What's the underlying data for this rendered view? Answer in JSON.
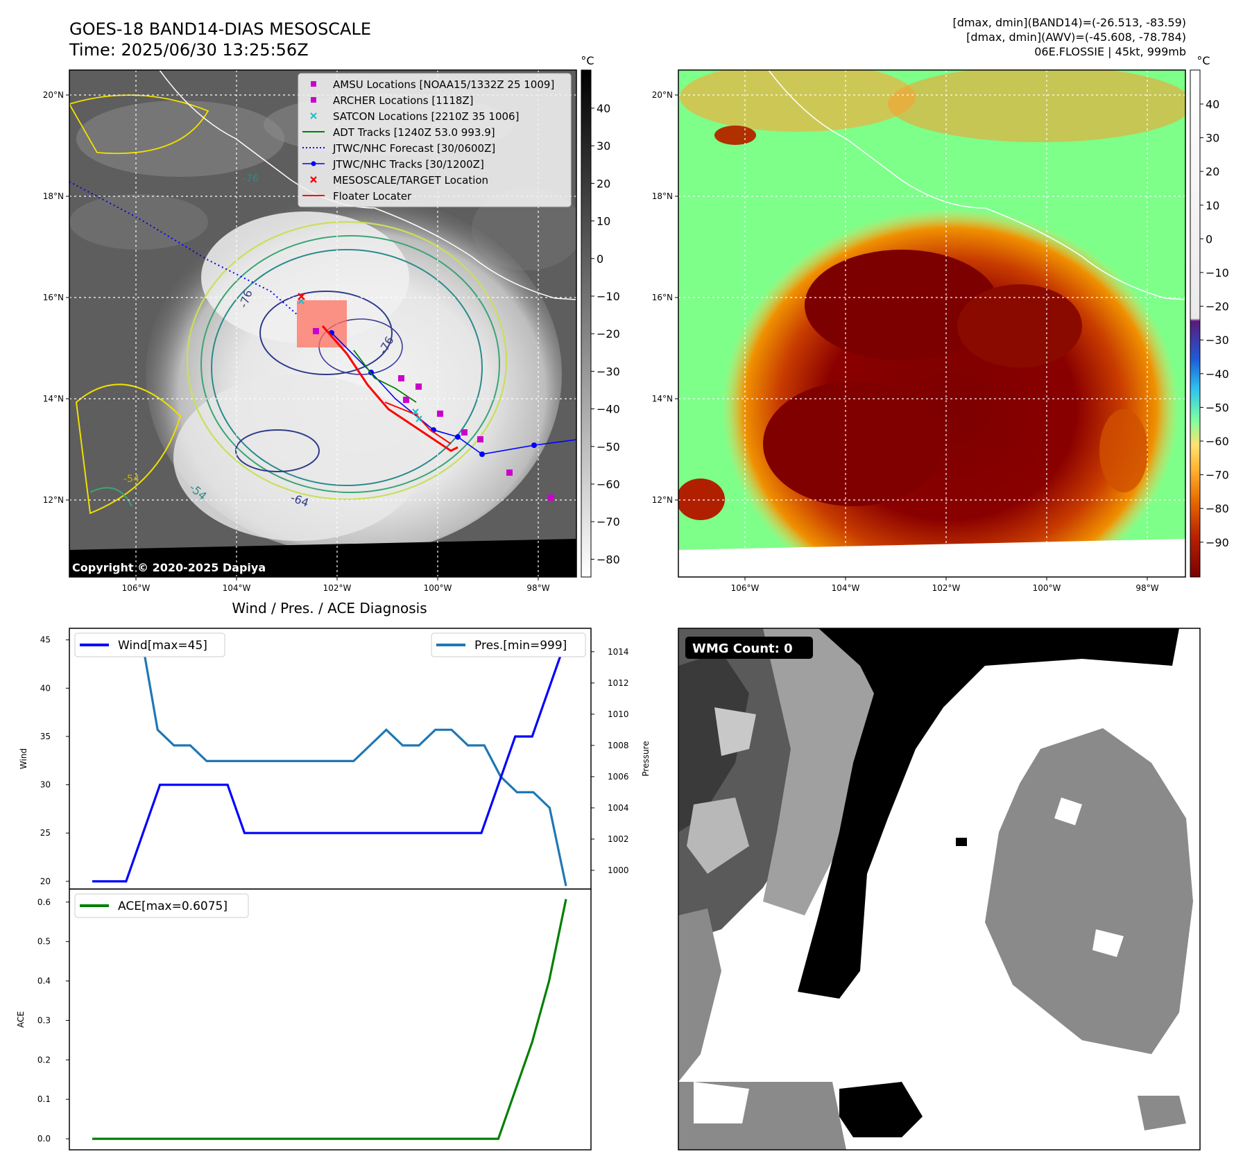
{
  "header": {
    "title_line1": "GOES-18 BAND14-DIAS MESOSCALE",
    "title_line2": "Time: 2025/06/30 13:25:56Z",
    "info_line1": "[dmax, dmin](BAND14)=(-26.513, -83.59)",
    "info_line2": "[dmax, dmin](AWV)=(-45.608, -78.784)",
    "info_line3": "06E.FLOSSIE | 45kt, 999mb"
  },
  "ir_panel": {
    "copyright": "Copyright © 2020-2025 Dapiya",
    "colorbar_unit": "°C",
    "colorbar_ticks": [
      "40",
      "30",
      "20",
      "10",
      "0",
      "−10",
      "−20",
      "−30",
      "−40",
      "−50",
      "−60",
      "−70",
      "−80"
    ],
    "lat_ticks": [
      "20°N",
      "18°N",
      "16°N",
      "14°N",
      "12°N"
    ],
    "lon_ticks": [
      "106°W",
      "104°W",
      "102°W",
      "100°W",
      "98°W"
    ],
    "legend": [
      "AMSU Locations [NOAA15/1332Z 25 1009]",
      "ARCHER Locations [1118Z]",
      "SATCON Locations [2210Z 35 1006]",
      "ADT Tracks [1240Z 53.0 993.9]",
      "JTWC/NHC Forecast [30/0600Z]",
      "JTWC/NHC Tracks [30/1200Z]",
      "MESOSCALE/TARGET Location",
      "Floater Locater"
    ],
    "contour_labels": [
      "-76",
      "-76",
      "-54",
      "-64",
      "-54",
      "-76"
    ]
  },
  "awv_panel": {
    "colorbar_unit": "°C",
    "colorbar_ticks": [
      "40",
      "30",
      "20",
      "10",
      "0",
      "−10",
      "−20",
      "−30",
      "−40",
      "−50",
      "−60",
      "−70",
      "−80",
      "−90"
    ],
    "lat_ticks": [
      "20°N",
      "18°N",
      "16°N",
      "14°N",
      "12°N"
    ],
    "lon_ticks": [
      "106°W",
      "104°W",
      "102°W",
      "100°W",
      "98°W"
    ]
  },
  "chart_data": [
    {
      "type": "line",
      "title": "Wind / Pres. / ACE Diagnosis",
      "ylabel": "Wind",
      "ylabel_right": "Pressure",
      "y_ticks": [
        "45",
        "40",
        "35",
        "30",
        "25",
        "20"
      ],
      "y_right_ticks": [
        "1014",
        "1012",
        "1010",
        "1008",
        "1006",
        "1004",
        "1002",
        "1000"
      ],
      "ylim": [
        19.2,
        46.2
      ],
      "ylim_right": [
        998.8,
        1015.5
      ],
      "series": [
        {
          "name": "Wind[max=45]",
          "color": "#0000ff",
          "values": [
            20,
            20,
            20,
            25,
            30,
            30,
            30,
            30,
            30,
            25,
            25,
            25,
            25,
            25,
            25,
            25,
            25,
            25,
            25,
            25,
            25,
            25,
            25,
            25,
            30,
            35,
            35,
            40,
            45
          ]
        },
        {
          "name": "Pres.[min=999]",
          "color": "#1f77b4",
          "values": [
            1015,
            1015,
            1015,
            1015,
            1009,
            1008,
            1008,
            1007,
            1007,
            1007,
            1007,
            1007,
            1007,
            1007,
            1007,
            1007,
            1007,
            1008,
            1009,
            1008,
            1008,
            1009,
            1009,
            1008,
            1008,
            1006,
            1005,
            1005,
            1004,
            999
          ]
        }
      ]
    },
    {
      "type": "line",
      "ylabel": "ACE",
      "y_ticks": [
        "0.6",
        "0.5",
        "0.4",
        "0.3",
        "0.2",
        "0.1",
        "0.0"
      ],
      "ylim": [
        -0.028,
        0.633
      ],
      "series": [
        {
          "name": "ACE[max=0.6075]",
          "color": "#008000",
          "values": [
            0,
            0,
            0,
            0,
            0,
            0,
            0,
            0,
            0,
            0,
            0,
            0,
            0,
            0,
            0,
            0,
            0,
            0,
            0,
            0,
            0,
            0,
            0,
            0,
            0,
            0.1225,
            0.245,
            0.4,
            0.6075
          ]
        }
      ]
    }
  ],
  "wmg_panel": {
    "label": "WMG Count: 0"
  },
  "colors": {
    "wind": "#0000ff",
    "pressure": "#1f77b4",
    "ace": "#008000",
    "track": "#0000ff",
    "floater": "#ff0000",
    "archer": "#cc00cc",
    "satcon": "#17becf"
  }
}
